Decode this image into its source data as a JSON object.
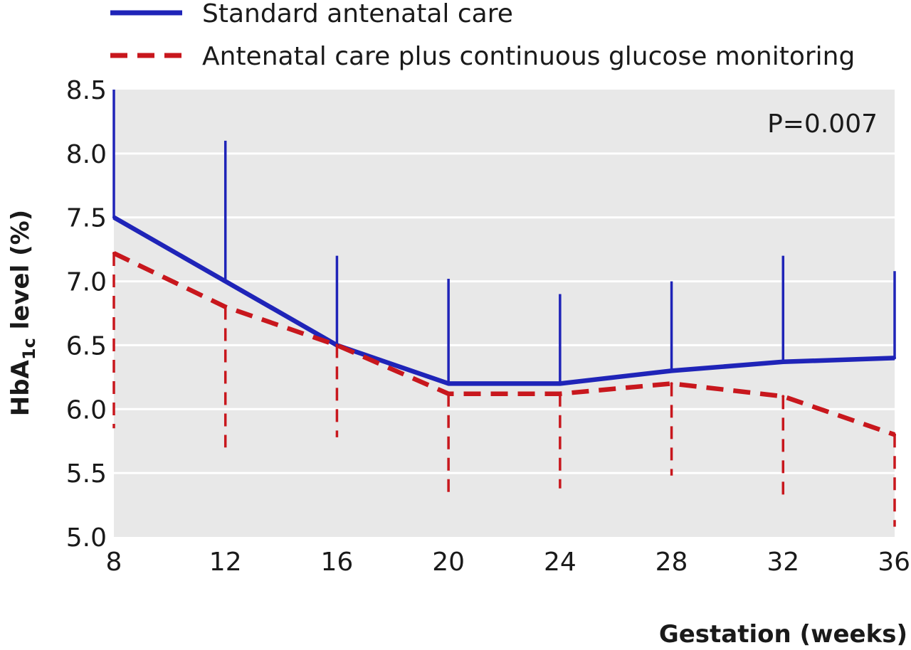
{
  "chart_data": {
    "type": "line",
    "title": "",
    "xlabel": "Gestation (weeks)",
    "ylabel": "HbA1c level (%)",
    "ylabel_parts": {
      "pre": "HbA",
      "sub": "1c",
      "post": " level (%)"
    },
    "x": [
      8,
      12,
      16,
      20,
      24,
      28,
      32,
      36
    ],
    "x_ticks": [
      "8",
      "12",
      "16",
      "20",
      "24",
      "28",
      "32",
      "36"
    ],
    "y_ticks": [
      "5.0",
      "5.5",
      "6.0",
      "6.5",
      "7.0",
      "7.5",
      "8.0",
      "8.5"
    ],
    "xlim": [
      8,
      36
    ],
    "ylim": [
      5.0,
      8.5
    ],
    "grid": true,
    "legend_position": "top-left",
    "annotation": "P=0.007",
    "series": [
      {
        "name": "Standard antenatal care",
        "color": "#1f24b8",
        "style": "solid",
        "error_direction": "up",
        "values": [
          7.5,
          7.0,
          6.5,
          6.2,
          6.2,
          6.3,
          6.37,
          6.4
        ],
        "error_ends": [
          8.5,
          8.1,
          7.2,
          7.02,
          6.9,
          7.0,
          7.2,
          7.08
        ]
      },
      {
        "name": "Antenatal care plus continuous glucose monitoring",
        "color": "#c8171d",
        "style": "dashed",
        "error_direction": "down",
        "values": [
          7.22,
          6.8,
          6.5,
          6.12,
          6.12,
          6.2,
          6.1,
          5.8
        ],
        "error_ends": [
          5.85,
          5.7,
          5.78,
          5.35,
          5.38,
          5.48,
          5.33,
          5.08
        ]
      }
    ]
  }
}
